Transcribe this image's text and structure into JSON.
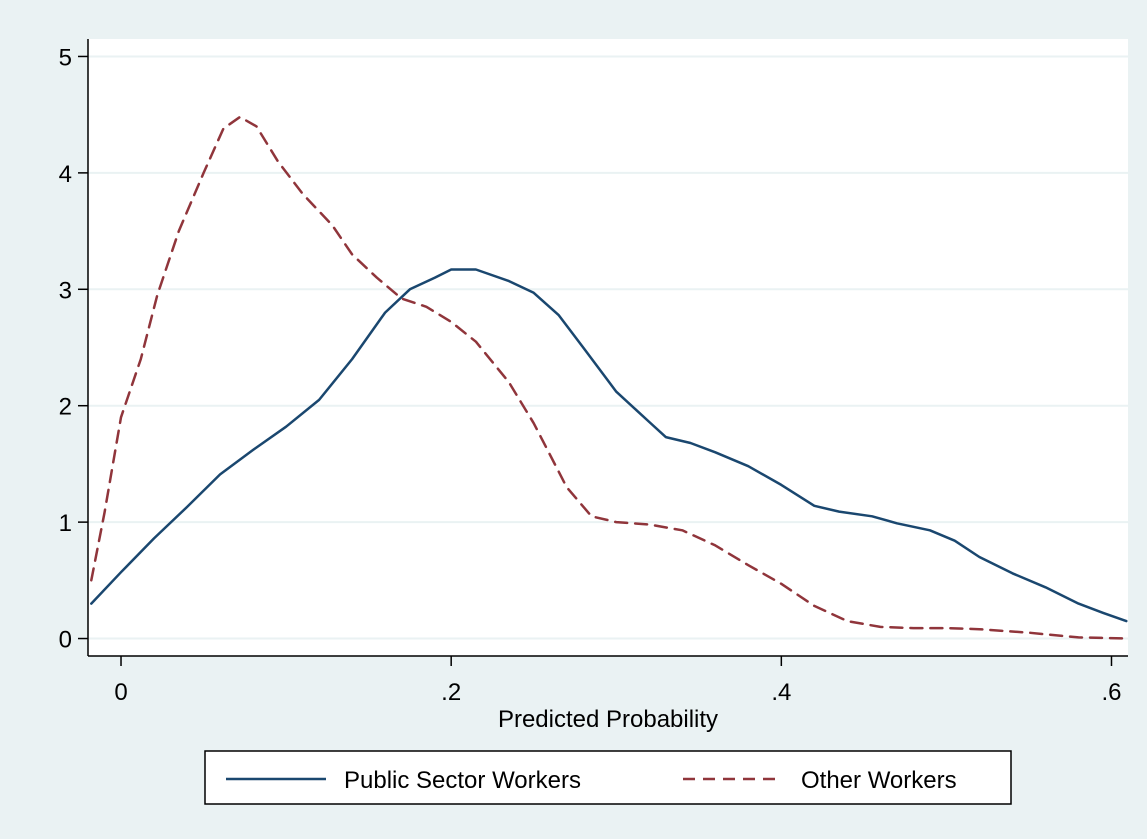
{
  "chart_data": {
    "type": "line",
    "title": "",
    "xlabel": "Predicted Probability",
    "ylabel": "",
    "xlim": [
      -0.02,
      0.61
    ],
    "ylim": [
      -0.15,
      5.15
    ],
    "grid": true,
    "legend_position": "bottom",
    "x_ticks": [
      0,
      0.2,
      0.4,
      0.6
    ],
    "x_tick_labels": [
      "0",
      ".2",
      ".4",
      ".6"
    ],
    "y_ticks": [
      0,
      1,
      2,
      3,
      4,
      5
    ],
    "y_tick_labels": [
      "0",
      "1",
      "2",
      "3",
      "4",
      "5"
    ],
    "series": [
      {
        "name": "Public Sector Workers",
        "color": "#1a476f",
        "dash": "solid",
        "points": [
          [
            -0.018,
            0.3
          ],
          [
            0.0,
            0.57
          ],
          [
            0.02,
            0.86
          ],
          [
            0.04,
            1.13
          ],
          [
            0.06,
            1.41
          ],
          [
            0.08,
            1.62
          ],
          [
            0.1,
            1.82
          ],
          [
            0.12,
            2.05
          ],
          [
            0.14,
            2.4
          ],
          [
            0.16,
            2.8
          ],
          [
            0.175,
            3.0
          ],
          [
            0.19,
            3.1
          ],
          [
            0.2,
            3.17
          ],
          [
            0.215,
            3.17
          ],
          [
            0.235,
            3.07
          ],
          [
            0.25,
            2.97
          ],
          [
            0.265,
            2.78
          ],
          [
            0.28,
            2.5
          ],
          [
            0.3,
            2.12
          ],
          [
            0.32,
            1.86
          ],
          [
            0.33,
            1.73
          ],
          [
            0.345,
            1.68
          ],
          [
            0.36,
            1.6
          ],
          [
            0.38,
            1.48
          ],
          [
            0.4,
            1.32
          ],
          [
            0.42,
            1.14
          ],
          [
            0.435,
            1.09
          ],
          [
            0.455,
            1.05
          ],
          [
            0.47,
            0.99
          ],
          [
            0.49,
            0.93
          ],
          [
            0.505,
            0.84
          ],
          [
            0.52,
            0.7
          ],
          [
            0.54,
            0.56
          ],
          [
            0.56,
            0.44
          ],
          [
            0.58,
            0.3
          ],
          [
            0.595,
            0.22
          ],
          [
            0.609,
            0.15
          ]
        ]
      },
      {
        "name": "Other Workers",
        "color": "#90353b",
        "dash": "dashed",
        "points": [
          [
            -0.018,
            0.5
          ],
          [
            -0.01,
            1.08
          ],
          [
            0.0,
            1.9
          ],
          [
            0.012,
            2.4
          ],
          [
            0.022,
            2.95
          ],
          [
            0.035,
            3.5
          ],
          [
            0.05,
            4.0
          ],
          [
            0.062,
            4.38
          ],
          [
            0.072,
            4.48
          ],
          [
            0.082,
            4.4
          ],
          [
            0.095,
            4.1
          ],
          [
            0.11,
            3.82
          ],
          [
            0.128,
            3.55
          ],
          [
            0.14,
            3.3
          ],
          [
            0.155,
            3.1
          ],
          [
            0.17,
            2.92
          ],
          [
            0.185,
            2.85
          ],
          [
            0.2,
            2.72
          ],
          [
            0.215,
            2.55
          ],
          [
            0.235,
            2.2
          ],
          [
            0.25,
            1.85
          ],
          [
            0.27,
            1.3
          ],
          [
            0.285,
            1.05
          ],
          [
            0.3,
            1.0
          ],
          [
            0.32,
            0.98
          ],
          [
            0.34,
            0.93
          ],
          [
            0.36,
            0.8
          ],
          [
            0.38,
            0.63
          ],
          [
            0.4,
            0.47
          ],
          [
            0.42,
            0.28
          ],
          [
            0.44,
            0.15
          ],
          [
            0.46,
            0.1
          ],
          [
            0.48,
            0.09
          ],
          [
            0.5,
            0.09
          ],
          [
            0.52,
            0.08
          ],
          [
            0.55,
            0.05
          ],
          [
            0.58,
            0.01
          ],
          [
            0.61,
            0.0
          ]
        ]
      }
    ]
  }
}
